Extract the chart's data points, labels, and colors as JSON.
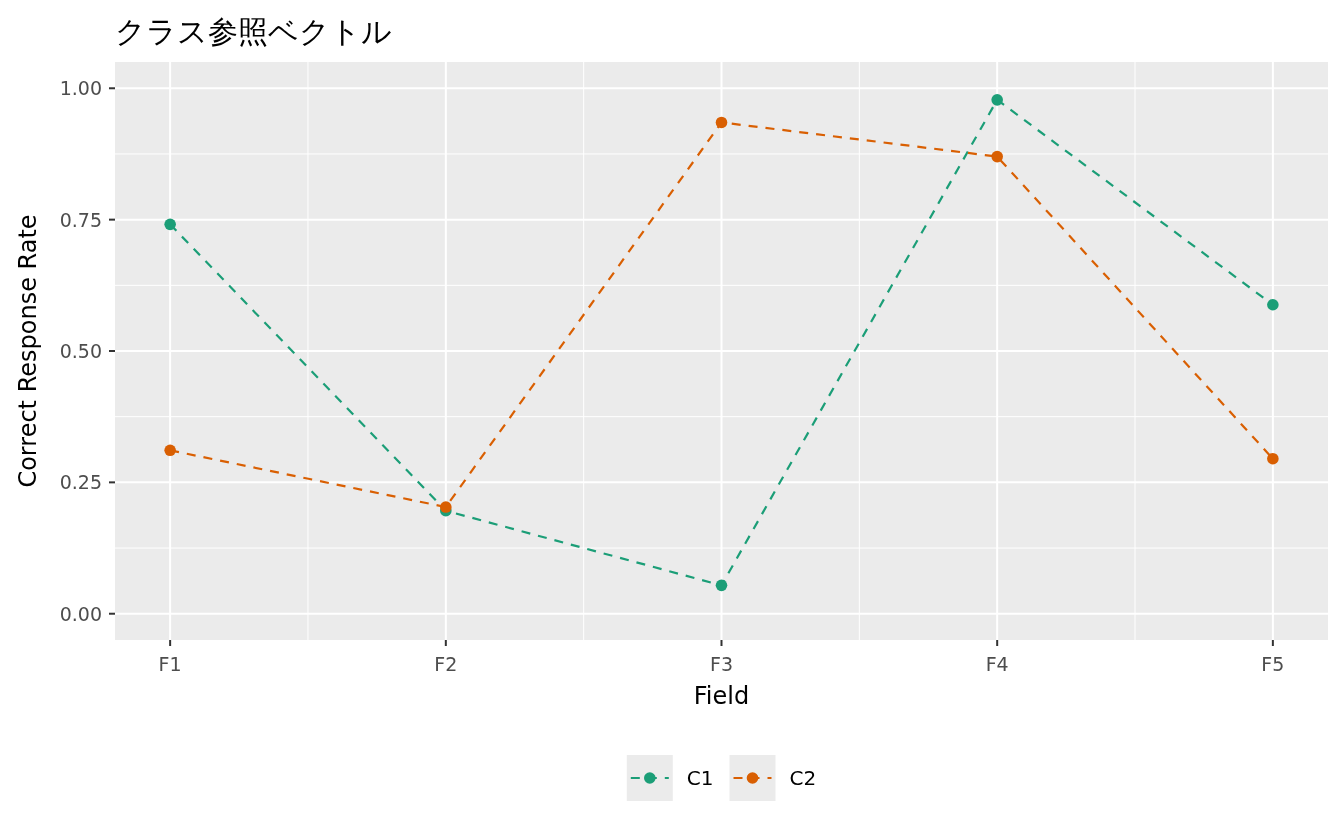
{
  "chart_data": {
    "type": "line",
    "title": "クラス参照ベクトル",
    "xlabel": "Field",
    "ylabel": "Correct Response Rate",
    "categories": [
      "F1",
      "F2",
      "F3",
      "F4",
      "F5"
    ],
    "series": [
      {
        "name": "C1",
        "color": "#1b9e77",
        "values": [
          0.741,
          0.196,
          0.054,
          0.978,
          0.588
        ]
      },
      {
        "name": "C2",
        "color": "#d95f02",
        "values": [
          0.311,
          0.203,
          0.935,
          0.87,
          0.295
        ]
      }
    ],
    "ylim": [
      -0.05,
      1.05
    ],
    "yticks": [
      {
        "value": 0,
        "label": "0.00"
      },
      {
        "value": 0.25,
        "label": "0.25"
      },
      {
        "value": 0.5,
        "label": "0.50"
      },
      {
        "value": 0.75,
        "label": "0.75"
      },
      {
        "value": 1,
        "label": "1.00"
      }
    ],
    "grid": true,
    "legend": "bottom",
    "marker": "circle",
    "line_style": "dashed"
  }
}
